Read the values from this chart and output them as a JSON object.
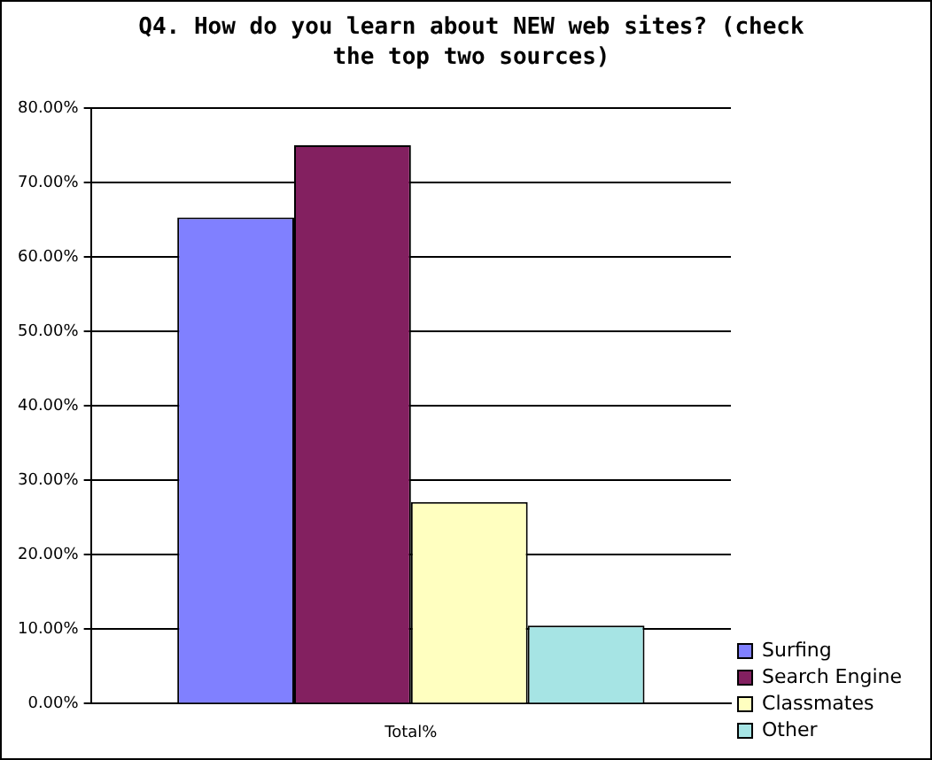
{
  "chart_data": {
    "type": "bar",
    "title": "Q4.  How do you learn about NEW web sites?  (check the top two sources)",
    "categories": [
      "Total%"
    ],
    "series": [
      {
        "name": "Surfing",
        "color": "#8080ff",
        "values": [
          65.3
        ]
      },
      {
        "name": "Search Engine",
        "color": "#832060",
        "values": [
          75.0
        ]
      },
      {
        "name": "Classmates",
        "color": "#ffffc0",
        "values": [
          27.1
        ]
      },
      {
        "name": "Other",
        "color": "#a6e4e4",
        "values": [
          10.5
        ]
      }
    ],
    "ylim": [
      0,
      80
    ],
    "yticks": [
      {
        "value": 0,
        "label": "0.00%"
      },
      {
        "value": 10,
        "label": "10.00%"
      },
      {
        "value": 20,
        "label": "20.00%"
      },
      {
        "value": 30,
        "label": "30.00%"
      },
      {
        "value": 40,
        "label": "40.00%"
      },
      {
        "value": 50,
        "label": "50.00%"
      },
      {
        "value": 60,
        "label": "60.00%"
      },
      {
        "value": 70,
        "label": "70.00%"
      },
      {
        "value": 80,
        "label": "80.00%"
      }
    ],
    "grid": "y",
    "legend": "right"
  }
}
